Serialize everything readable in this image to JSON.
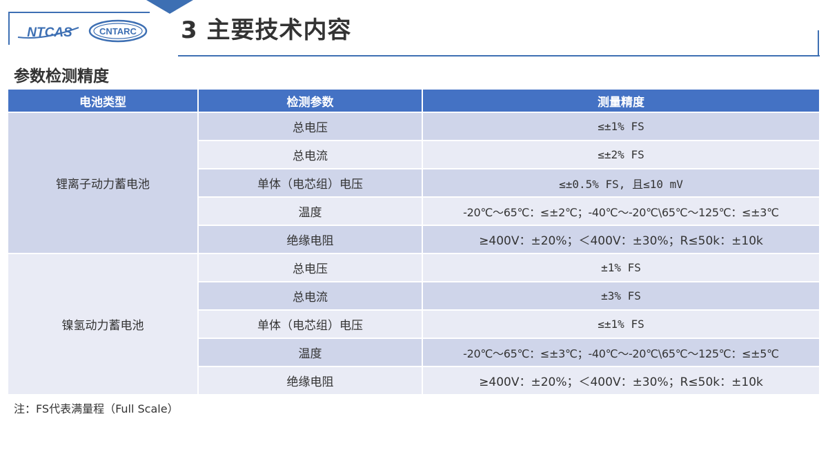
{
  "header": {
    "logo_primary": "NTCAS",
    "logo_secondary": "CNTARC",
    "title": "3 主要技术内容"
  },
  "section_title": "参数检测精度",
  "table": {
    "headers": [
      "电池类型",
      "检测参数",
      "测量精度"
    ],
    "groups": [
      {
        "type": "锂离子动力蓄电池",
        "rows": [
          {
            "param": "总电压",
            "accuracy": "≤±1% FS"
          },
          {
            "param": "总电流",
            "accuracy": "≤±2% FS"
          },
          {
            "param": "单体（电芯组）电压",
            "accuracy": "≤±0.5% FS, 且≤10 mV"
          },
          {
            "param": "温度",
            "accuracy": "-20℃～65℃：≤±2℃；-40℃～-20℃\\65℃～125℃：≤±3℃"
          },
          {
            "param": "绝缘电阻",
            "accuracy": "≥400V：±20%；＜400V：±30%；R≤50k：±10k"
          }
        ]
      },
      {
        "type": "镍氢动力蓄电池",
        "rows": [
          {
            "param": "总电压",
            "accuracy": "±1% FS"
          },
          {
            "param": "总电流",
            "accuracy": "±3% FS"
          },
          {
            "param": "单体（电芯组）电压",
            "accuracy": "≤±1% FS"
          },
          {
            "param": "温度",
            "accuracy": "-20℃～65℃：≤±3℃；-40℃～-20℃\\65℃～125℃：≤±5℃"
          },
          {
            "param": "绝缘电阻",
            "accuracy": "≥400V：±20%；＜400V：±30%；R≤50k：±10k"
          }
        ]
      }
    ]
  },
  "footnote": "注：FS代表满量程（Full Scale）",
  "colors": {
    "accent": "#3d6fb3",
    "header_bg": "#4472c4",
    "row_dark": "#cfd5ea",
    "row_light": "#e9ebf5"
  }
}
